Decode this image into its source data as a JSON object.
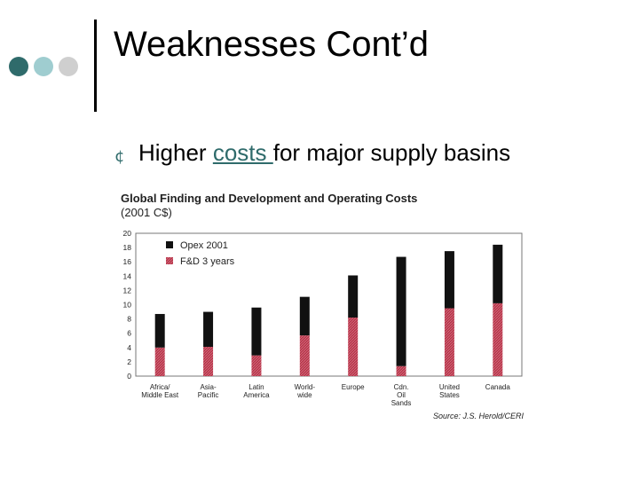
{
  "slide": {
    "title": "Weaknesses Cont’d",
    "bullet": {
      "prefix": "Higher ",
      "link_text": "costs ",
      "suffix": "for major supply basins"
    }
  },
  "chart_data": {
    "type": "bar",
    "stacked": true,
    "title": "Global Finding and Development and Operating Costs",
    "subtitle": "(2001 C$)",
    "categories": [
      [
        "Africa/",
        "Middle East"
      ],
      [
        "Asia-",
        "Pacific"
      ],
      [
        "Latin",
        "America"
      ],
      [
        "World-",
        "wide"
      ],
      [
        "Europe"
      ],
      [
        "Cdn.",
        "Oil",
        "Sands"
      ],
      [
        "United",
        "States"
      ],
      [
        "Canada"
      ]
    ],
    "series": [
      {
        "name": "F&D 3 years",
        "color": "#b8364a",
        "values": [
          4.0,
          4.1,
          2.9,
          5.7,
          8.2,
          1.4,
          9.5,
          10.2
        ]
      },
      {
        "name": "Opex 2001",
        "color": "#111111",
        "values": [
          4.7,
          4.9,
          6.7,
          5.4,
          5.9,
          15.3,
          8.0,
          8.2
        ]
      }
    ],
    "ylim": [
      0,
      20
    ],
    "yticks": [
      "0",
      "2",
      "4",
      "6",
      "8",
      "10",
      "12",
      "14",
      "16",
      "18",
      "20"
    ],
    "legend_position": "top-left",
    "grid": false,
    "source": "Source: J.S. Herold/CERI"
  }
}
